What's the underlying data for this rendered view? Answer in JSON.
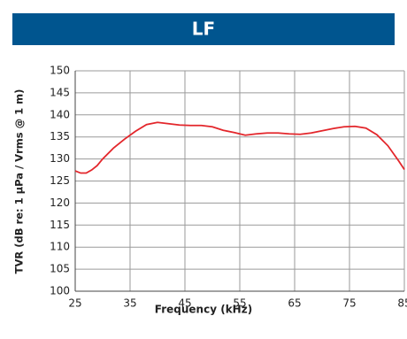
{
  "header": {
    "title": "LF"
  },
  "chart_data": {
    "type": "line",
    "x_label": "Frequency (kHz)",
    "y_label": "TVR (dB re: 1 µPa / Vrms @ 1 m)",
    "x": [
      25,
      26,
      27,
      28,
      29,
      30,
      32,
      34,
      36,
      38,
      40,
      42,
      44,
      46,
      48,
      50,
      52,
      54,
      56,
      58,
      60,
      62,
      64,
      66,
      68,
      70,
      72,
      74,
      76,
      78,
      80,
      82,
      84,
      85
    ],
    "series": [
      {
        "color": "#e3262b",
        "values": [
          127.3,
          126.8,
          126.8,
          127.5,
          128.5,
          130,
          132.5,
          134.5,
          136.3,
          137.8,
          138.3,
          138,
          137.7,
          137.6,
          137.6,
          137.3,
          136.5,
          136,
          135.4,
          135.7,
          135.9,
          135.9,
          135.7,
          135.6,
          135.9,
          136.4,
          136.9,
          137.3,
          137.4,
          137,
          135.5,
          133,
          129.5,
          127.6
        ]
      }
    ],
    "xlim": [
      25,
      85
    ],
    "xticks": [
      25,
      35,
      45,
      55,
      65,
      75,
      85
    ],
    "ylim": [
      100,
      150
    ],
    "yticks": [
      100,
      105,
      110,
      115,
      120,
      125,
      130,
      135,
      140,
      145,
      150
    ],
    "grid": true
  }
}
